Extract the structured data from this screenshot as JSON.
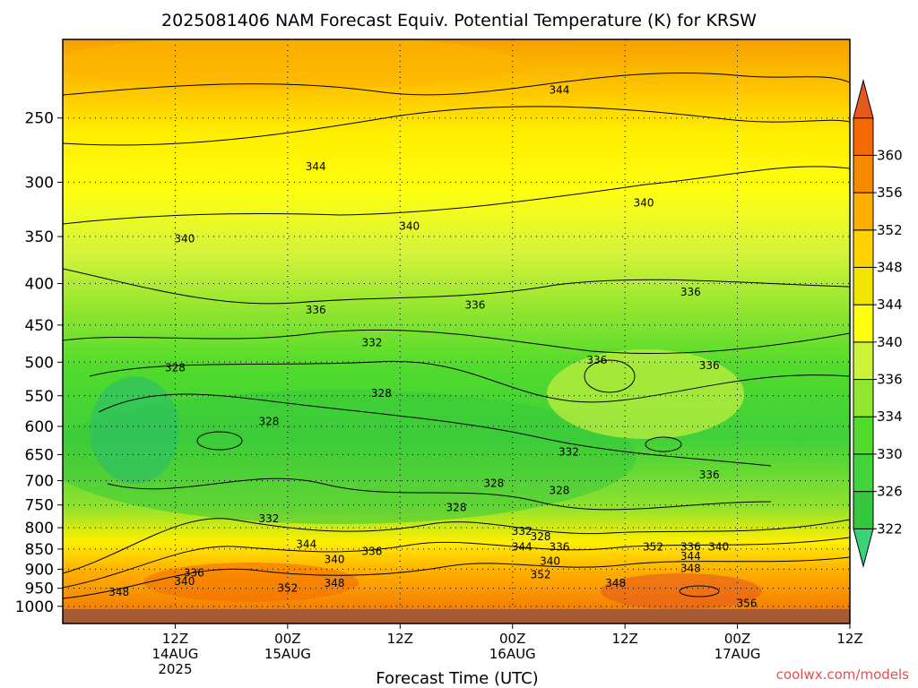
{
  "chart_data": {
    "type": "heatmap",
    "title": "2025081406 NAM Forecast Equiv. Potential Temperature (K) for KRSW",
    "xlabel": "Forecast Time (UTC)",
    "ylabel": "",
    "y_axis": {
      "scale": "log-pressure",
      "ticks": [
        250,
        300,
        350,
        400,
        450,
        500,
        550,
        600,
        650,
        700,
        750,
        800,
        850,
        900,
        950,
        1000
      ],
      "tick_labels": [
        "250",
        "300",
        "350",
        "400",
        "450",
        "500",
        "550",
        "600",
        "650",
        "700",
        "750",
        "800",
        "850",
        "900",
        "950",
        "1000"
      ],
      "range": [
        200,
        1050
      ]
    },
    "x_axis": {
      "range_hours": [
        -6,
        78
      ],
      "ticks": [
        {
          "hour": 6,
          "lines": [
            "12Z",
            "14AUG",
            "2025"
          ]
        },
        {
          "hour": 18,
          "lines": [
            "00Z",
            "15AUG"
          ]
        },
        {
          "hour": 30,
          "lines": [
            "12Z"
          ]
        },
        {
          "hour": 42,
          "lines": [
            "00Z",
            "16AUG"
          ]
        },
        {
          "hour": 54,
          "lines": [
            "12Z"
          ]
        },
        {
          "hour": 66,
          "lines": [
            "00Z",
            "17AUG"
          ]
        },
        {
          "hour": 78,
          "lines": [
            "12Z"
          ]
        }
      ]
    },
    "colorbar": {
      "ticks": [
        "322",
        "326",
        "330",
        "334",
        "336",
        "340",
        "344",
        "348",
        "352",
        "356",
        "360"
      ],
      "colors": [
        "#3ad37a",
        "#35c83e",
        "#43d33a",
        "#52db2c",
        "#93e62f",
        "#cdf23a",
        "#ffff10",
        "#f2e400",
        "#ffd200",
        "#ffae00",
        "#f88a00",
        "#f46a00",
        "#e65a1e"
      ]
    },
    "grid": true,
    "contour_labels": [
      {
        "text": "344",
        "hour": 47,
        "p": 231
      },
      {
        "text": "344",
        "hour": 21,
        "p": 287
      },
      {
        "text": "340",
        "hour": 56,
        "p": 318
      },
      {
        "text": "340",
        "hour": 7,
        "p": 352
      },
      {
        "text": "340",
        "hour": 31,
        "p": 340
      },
      {
        "text": "336",
        "hour": 21,
        "p": 431
      },
      {
        "text": "336",
        "hour": 38,
        "p": 425
      },
      {
        "text": "336",
        "hour": 61,
        "p": 410
      },
      {
        "text": "332",
        "hour": 27,
        "p": 473
      },
      {
        "text": "328",
        "hour": 6,
        "p": 508
      },
      {
        "text": "328",
        "hour": 28,
        "p": 546
      },
      {
        "text": "328",
        "hour": 16,
        "p": 592
      },
      {
        "text": "336",
        "hour": 51,
        "p": 497
      },
      {
        "text": "336",
        "hour": 63,
        "p": 505
      },
      {
        "text": "332",
        "hour": 48,
        "p": 645
      },
      {
        "text": "328",
        "hour": 40,
        "p": 705
      },
      {
        "text": "328",
        "hour": 47,
        "p": 720
      },
      {
        "text": "336",
        "hour": 63,
        "p": 688
      },
      {
        "text": "328",
        "hour": 36,
        "p": 755
      },
      {
        "text": "332",
        "hour": 16,
        "p": 780
      },
      {
        "text": "344",
        "hour": 20,
        "p": 838
      },
      {
        "text": "336",
        "hour": 27,
        "p": 856
      },
      {
        "text": "340",
        "hour": 23,
        "p": 875
      },
      {
        "text": "332",
        "hour": 43,
        "p": 808
      },
      {
        "text": "344",
        "hour": 43,
        "p": 845
      },
      {
        "text": "328",
        "hour": 45,
        "p": 820
      },
      {
        "text": "336",
        "hour": 47,
        "p": 845
      },
      {
        "text": "340",
        "hour": 46,
        "p": 880
      },
      {
        "text": "352",
        "hour": 57,
        "p": 845
      },
      {
        "text": "336",
        "hour": 61,
        "p": 845
      },
      {
        "text": "340",
        "hour": 64,
        "p": 845
      },
      {
        "text": "344",
        "hour": 61,
        "p": 868
      },
      {
        "text": "348",
        "hour": 61,
        "p": 898
      },
      {
        "text": "336",
        "hour": 8,
        "p": 910
      },
      {
        "text": "340",
        "hour": 7,
        "p": 932
      },
      {
        "text": "348",
        "hour": 0,
        "p": 960
      },
      {
        "text": "352",
        "hour": 18,
        "p": 950
      },
      {
        "text": "348",
        "hour": 23,
        "p": 937
      },
      {
        "text": "352",
        "hour": 45,
        "p": 914
      },
      {
        "text": "348",
        "hour": 53,
        "p": 937
      },
      {
        "text": "356",
        "hour": 67,
        "p": 992
      }
    ],
    "credit": "coolwx.com/models"
  }
}
